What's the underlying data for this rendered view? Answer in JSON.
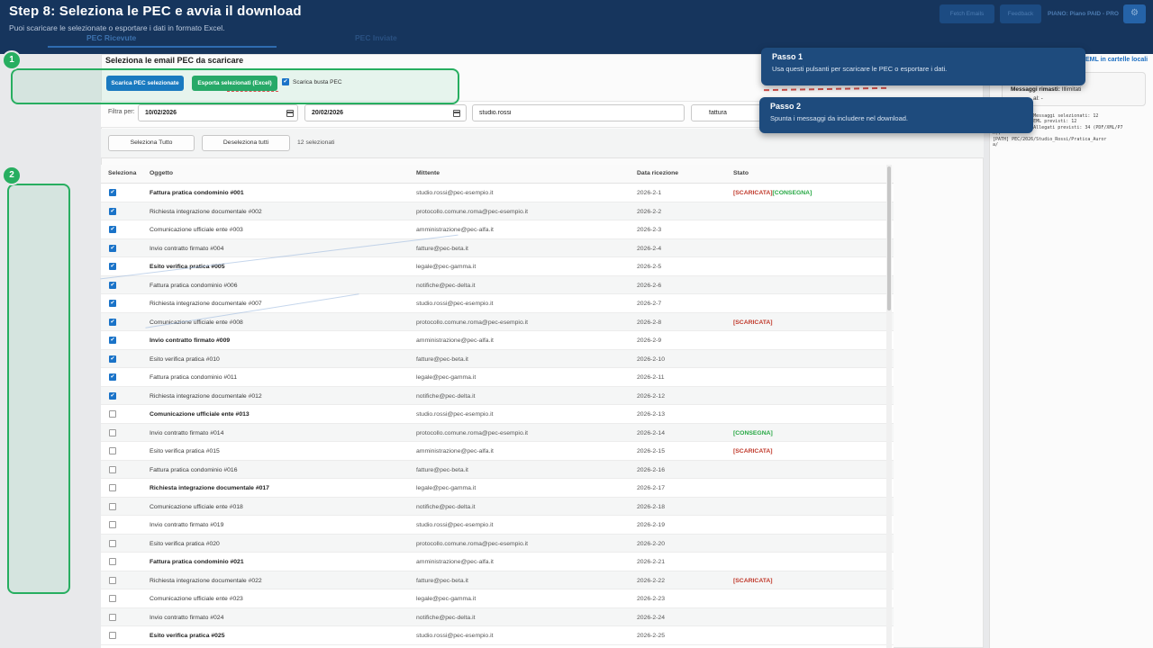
{
  "header": {
    "title": "Step 8: Seleziona le PEC e avvia il download",
    "subtitle": "Puoi scaricare le selezionate o esportare i dati in formato Excel.",
    "tabs": [
      {
        "label": "PEC Ricevute",
        "active": true
      },
      {
        "label": "PEC Inviate",
        "active": false
      }
    ],
    "actions": {
      "fetch_label": "Fetch Emails",
      "feedback_label": "Feedback",
      "plan_text": "PIANO: Piano PAID - PRO",
      "gear_glyph": "⚙"
    }
  },
  "toolbar": {
    "heading": "Seleziona le email PEC da scaricare",
    "download_label": "Scarica PEC selezionate",
    "export_label": "Esporta selezionati (Excel)",
    "busta_label": "Scarica busta PEC",
    "busta_checked": true
  },
  "filters": {
    "label": "Filtra per:",
    "date_from": "10/02/2026",
    "date_to": "20/02/2026",
    "sender_filter": "studio.rossi",
    "subject_filter": "fattura"
  },
  "selection": {
    "select_all_label": "Seleziona Tutto",
    "deselect_all_label": "Deseleziona tutti",
    "count_text": "12 selezionati"
  },
  "table": {
    "columns": [
      "Seleziona",
      "Oggetto",
      "Mittente",
      "Data ricezione",
      "Stato"
    ],
    "rows": [
      {
        "subject": "Fattura pratica condominio #001",
        "sender": "studio.rossi@pec-esempio.it",
        "date": "2026-2-1",
        "checked": true,
        "bold": true,
        "statuses": [
          {
            "text": "[SCARICATA]",
            "color": "#c0392b"
          },
          {
            "text": "[CONSEGNA]",
            "color": "#27a844"
          }
        ]
      },
      {
        "subject": "Richiesta integrazione documentale #002",
        "sender": "protocollo.comune.roma@pec-esempio.it",
        "date": "2026-2-2",
        "checked": true,
        "bold": false,
        "statuses": []
      },
      {
        "subject": "Comunicazione ufficiale ente #003",
        "sender": "amministrazione@pec-alfa.it",
        "date": "2026-2-3",
        "checked": true,
        "bold": false,
        "statuses": []
      },
      {
        "subject": "Invio contratto firmato #004",
        "sender": "fatture@pec-beta.it",
        "date": "2026-2-4",
        "checked": true,
        "bold": false,
        "statuses": []
      },
      {
        "subject": "Esito verifica pratica #005",
        "sender": "legale@pec-gamma.it",
        "date": "2026-2-5",
        "checked": true,
        "bold": true,
        "statuses": []
      },
      {
        "subject": "Fattura pratica condominio #006",
        "sender": "notifiche@pec-delta.it",
        "date": "2026-2-6",
        "checked": true,
        "bold": false,
        "statuses": []
      },
      {
        "subject": "Richiesta integrazione documentale #007",
        "sender": "studio.rossi@pec-esempio.it",
        "date": "2026-2-7",
        "checked": true,
        "bold": false,
        "statuses": []
      },
      {
        "subject": "Comunicazione ufficiale ente #008",
        "sender": "protocollo.comune.roma@pec-esempio.it",
        "date": "2026-2-8",
        "checked": true,
        "bold": false,
        "statuses": [
          {
            "text": "[SCARICATA]",
            "color": "#c0392b"
          }
        ]
      },
      {
        "subject": "Invio contratto firmato #009",
        "sender": "amministrazione@pec-alfa.it",
        "date": "2026-2-9",
        "checked": true,
        "bold": true,
        "statuses": []
      },
      {
        "subject": "Esito verifica pratica #010",
        "sender": "fatture@pec-beta.it",
        "date": "2026-2-10",
        "checked": true,
        "bold": false,
        "statuses": []
      },
      {
        "subject": "Fattura pratica condominio #011",
        "sender": "legale@pec-gamma.it",
        "date": "2026-2-11",
        "checked": true,
        "bold": false,
        "statuses": []
      },
      {
        "subject": "Richiesta integrazione documentale #012",
        "sender": "notifiche@pec-delta.it",
        "date": "2026-2-12",
        "checked": true,
        "bold": false,
        "statuses": []
      },
      {
        "subject": "Comunicazione ufficiale ente #013",
        "sender": "studio.rossi@pec-esempio.it",
        "date": "2026-2-13",
        "checked": false,
        "bold": true,
        "statuses": []
      },
      {
        "subject": "Invio contratto firmato #014",
        "sender": "protocollo.comune.roma@pec-esempio.it",
        "date": "2026-2-14",
        "checked": false,
        "bold": false,
        "statuses": [
          {
            "text": "[CONSEGNA]",
            "color": "#27a844"
          }
        ]
      },
      {
        "subject": "Esito verifica pratica #015",
        "sender": "amministrazione@pec-alfa.it",
        "date": "2026-2-15",
        "checked": false,
        "bold": false,
        "statuses": [
          {
            "text": "[SCARICATA]",
            "color": "#c0392b"
          }
        ]
      },
      {
        "subject": "Fattura pratica condominio #016",
        "sender": "fatture@pec-beta.it",
        "date": "2026-2-16",
        "checked": false,
        "bold": false,
        "statuses": []
      },
      {
        "subject": "Richiesta integrazione documentale #017",
        "sender": "legale@pec-gamma.it",
        "date": "2026-2-17",
        "checked": false,
        "bold": true,
        "statuses": []
      },
      {
        "subject": "Comunicazione ufficiale ente #018",
        "sender": "notifiche@pec-delta.it",
        "date": "2026-2-18",
        "checked": false,
        "bold": false,
        "statuses": []
      },
      {
        "subject": "Invio contratto firmato #019",
        "sender": "studio.rossi@pec-esempio.it",
        "date": "2026-2-19",
        "checked": false,
        "bold": false,
        "statuses": []
      },
      {
        "subject": "Esito verifica pratica #020",
        "sender": "protocollo.comune.roma@pec-esempio.it",
        "date": "2026-2-20",
        "checked": false,
        "bold": false,
        "statuses": []
      },
      {
        "subject": "Fattura pratica condominio #021",
        "sender": "amministrazione@pec-alfa.it",
        "date": "2026-2-21",
        "checked": false,
        "bold": true,
        "statuses": []
      },
      {
        "subject": "Richiesta integrazione documentale #022",
        "sender": "fatture@pec-beta.it",
        "date": "2026-2-22",
        "checked": false,
        "bold": false,
        "statuses": [
          {
            "text": "[SCARICATA]",
            "color": "#c0392b"
          }
        ]
      },
      {
        "subject": "Comunicazione ufficiale ente #023",
        "sender": "legale@pec-gamma.it",
        "date": "2026-2-23",
        "checked": false,
        "bold": false,
        "statuses": []
      },
      {
        "subject": "Invio contratto firmato #024",
        "sender": "notifiche@pec-delta.it",
        "date": "2026-2-24",
        "checked": false,
        "bold": false,
        "statuses": []
      },
      {
        "subject": "Esito verifica pratica #025",
        "sender": "studio.rossi@pec-esempio.it",
        "date": "2026-2-25",
        "checked": false,
        "bold": true,
        "statuses": []
      }
    ]
  },
  "sidebar": {
    "eml_label_fragment": "EML in cartelle locali",
    "quota_label": "Messaggi rimasti:",
    "quota_value": " Illimitati",
    "second_line_fragment": "al: -",
    "log_text": "               Messaggi selezionati: 12\n               EML previsti: 12\n               Allegati previsti: 34 (PDF/XML/P7\nM),\n[PATH] PEC/2026/Studio_Rossi/Pratica_Auror\na/"
  },
  "tour": {
    "step1": {
      "badge": "1",
      "title": "Passo 1",
      "body": "Usa questi pulsanti per scaricare le PEC o esportare i dati."
    },
    "step2": {
      "badge": "2",
      "title": "Passo 2",
      "body": "Spunta i messaggi da includere nel download."
    }
  },
  "colors": {
    "highlight_green": "#27ae60",
    "tooltip_blue": "#1e4b7d",
    "header_navy": "#16355d",
    "primary_button_blue": "#1a7ac0",
    "export_button_green": "#27a968",
    "status_scaricata_red": "#c0392b",
    "status_consegna_green": "#27a844"
  }
}
